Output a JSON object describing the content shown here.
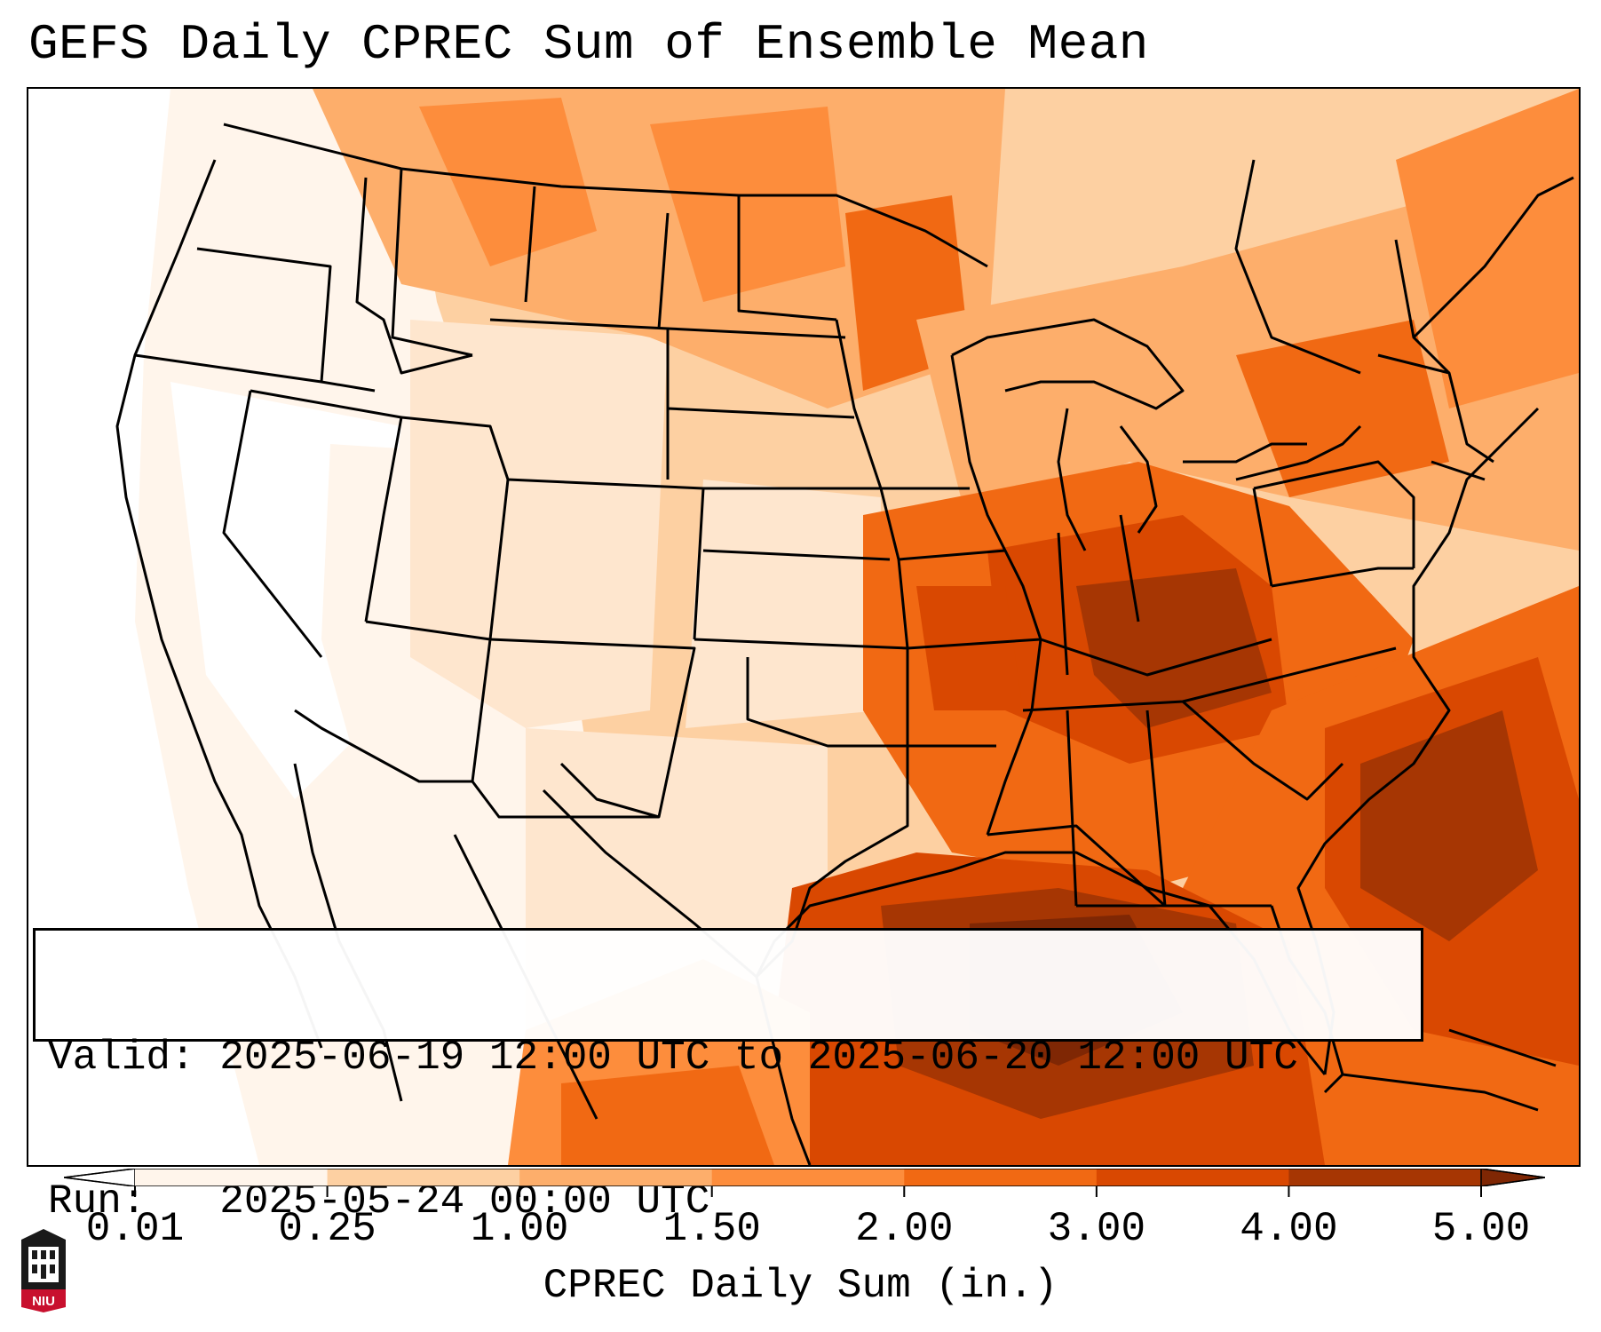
{
  "title": "GEFS Daily CPREC Sum of Ensemble Mean",
  "info": {
    "valid_line": "Valid: 2025-06-19 12:00 UTC to 2025-06-20 12:00 UTC",
    "run_line": "Run:   2025-05-24 00:00 UTC"
  },
  "colorbar": {
    "title": "CPREC Daily Sum (in.)",
    "ticks": [
      "0.01",
      "0.25",
      "1.00",
      "1.50",
      "2.00",
      "3.00",
      "4.00",
      "5.00"
    ],
    "tick_values": [
      0.01,
      0.25,
      1.0,
      1.5,
      2.0,
      3.0,
      4.0,
      5.0
    ],
    "bin_colors": [
      "#fff5eb",
      "#fee6ce",
      "#fdd0a2",
      "#fdae6b",
      "#fd8d3c",
      "#f16913",
      "#d94801",
      "#a63603"
    ],
    "under_color": "#ffffff",
    "over_color": "#7f2704",
    "extend": "both"
  },
  "logo": {
    "text": "NIU",
    "colors": {
      "primary": "#c8102e",
      "secondary": "#000000"
    }
  }
}
